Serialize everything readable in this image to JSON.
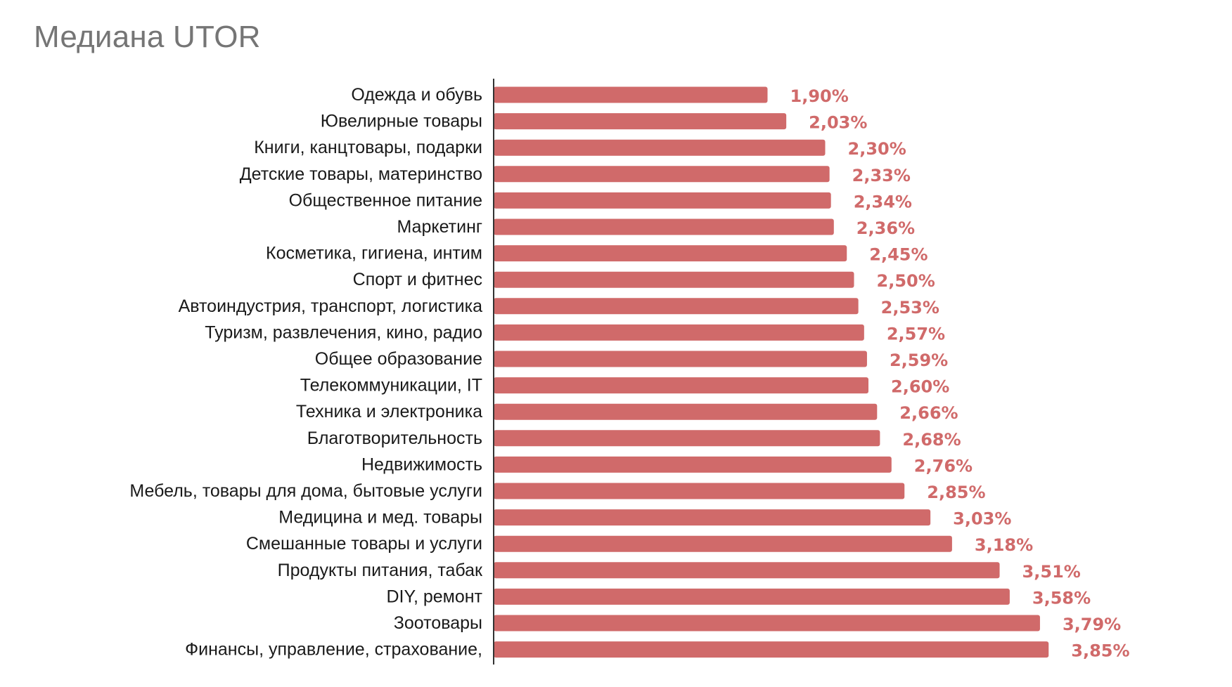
{
  "title": "Медиана UTOR",
  "colors": {
    "bar": "#d06a6a",
    "value_label": "#d06a6a",
    "title": "#757575",
    "axis": "#333333",
    "category_label": "#1a1a1a"
  },
  "chart_data": {
    "type": "bar",
    "orientation": "horizontal",
    "title": "Медиана UTOR",
    "xlabel": "",
    "ylabel": "",
    "unit": "%",
    "xlim": [
      0,
      3.85
    ],
    "grid": false,
    "legend": "none",
    "categories": [
      "Одежда и обувь",
      "Ювелирные товары",
      "Книги, канцтовары, подарки",
      "Детские товары, материнство",
      "Общественное питание",
      "Маркетинг",
      "Косметика, гигиена, интим",
      "Спорт и фитнес",
      "Автоиндустрия, транспорт, логистика",
      "Туризм, развлечения, кино, радио",
      "Общее образование",
      "Телекоммуникации, IT",
      "Техника и электроника",
      "Благотворительность",
      "Недвижимость",
      "Мебель, товары для дома, бытовые услуги",
      "Медицина и мед. товары",
      "Смешанные товары и услуги",
      "Продукты питания, табак",
      "DIY, ремонт",
      "Зоотовары",
      "Финансы, управление, страхование,"
    ],
    "values": [
      1.9,
      2.03,
      2.3,
      2.33,
      2.34,
      2.36,
      2.45,
      2.5,
      2.53,
      2.57,
      2.59,
      2.6,
      2.66,
      2.68,
      2.76,
      2.85,
      3.03,
      3.18,
      3.51,
      3.58,
      3.79,
      3.85
    ],
    "value_labels": [
      "1,90%",
      "2,03%",
      "2,30%",
      "2,33%",
      "2,34%",
      "2,36%",
      "2,45%",
      "2,50%",
      "2,53%",
      "2,57%",
      "2,59%",
      "2,60%",
      "2,66%",
      "2,68%",
      "2,76%",
      "2,85%",
      "3,03%",
      "3,18%",
      "3,51%",
      "3,58%",
      "3,79%",
      "3,85%"
    ]
  }
}
